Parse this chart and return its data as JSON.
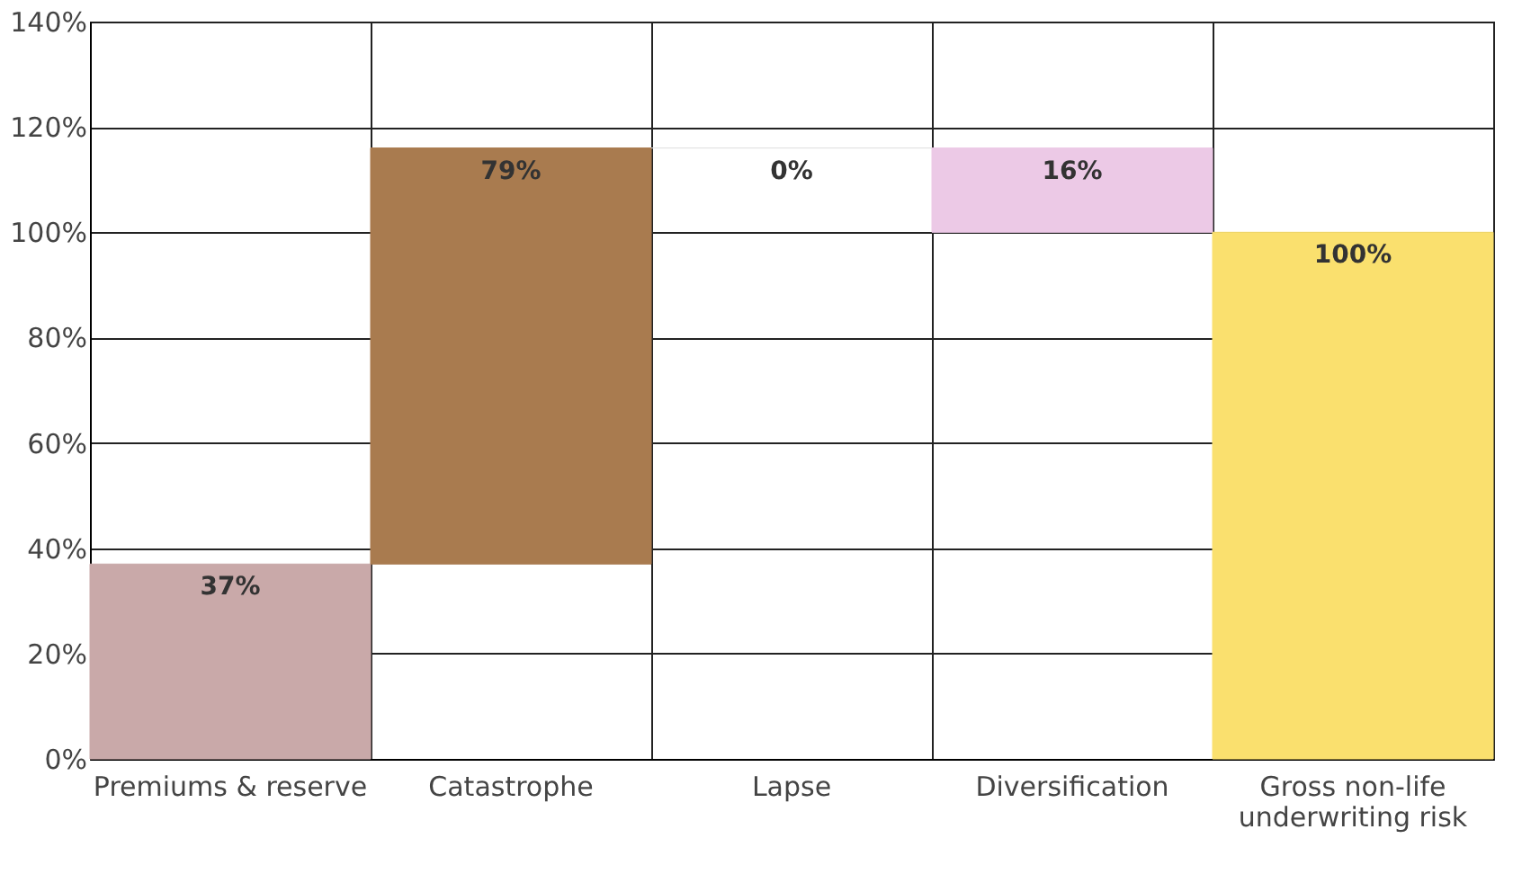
{
  "chart_data": {
    "type": "bar",
    "categories": [
      "Premiums & reserve",
      "Catastrophe",
      "Lapse",
      "Diversification",
      "Gross non-life underwriting risk"
    ],
    "values": [
      37,
      79,
      0,
      -16,
      100
    ],
    "base": [
      0,
      37,
      116,
      116,
      0
    ],
    "colors": [
      "#c9a9a9",
      "#a97b4f",
      "#e0e0e0",
      "#ecc9e6",
      "#fae06e"
    ],
    "value_labels": [
      "37%",
      "79%",
      "0%",
      "16%",
      "100%"
    ],
    "ylim": [
      0,
      140
    ],
    "yticks": [
      {
        "value": 0,
        "label": "0%"
      },
      {
        "value": 20,
        "label": "20%"
      },
      {
        "value": 40,
        "label": "40%"
      },
      {
        "value": 60,
        "label": "60%"
      },
      {
        "value": 80,
        "label": "80%"
      },
      {
        "value": 100,
        "label": "100%"
      },
      {
        "value": 120,
        "label": "120%"
      },
      {
        "value": 140,
        "label": "140%"
      }
    ],
    "grid": true
  }
}
